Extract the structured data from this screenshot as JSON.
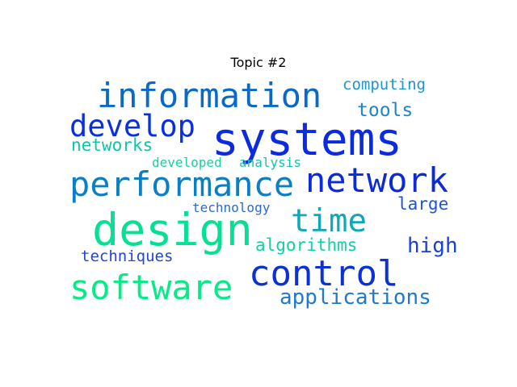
{
  "title": "Topic #2",
  "words": [
    {
      "key": "systems",
      "text": "systems",
      "color": "#0a2be0"
    },
    {
      "key": "information",
      "text": "information",
      "color": "#0a68c6"
    },
    {
      "key": "develop",
      "text": "develop",
      "color": "#0a30dc"
    },
    {
      "key": "computing",
      "text": "computing",
      "color": "#1f95cf"
    },
    {
      "key": "tools",
      "text": "tools",
      "color": "#1a86cc"
    },
    {
      "key": "networks",
      "text": "networks",
      "color": "#10c4a8"
    },
    {
      "key": "developed",
      "text": "developed",
      "color": "#12d2a2"
    },
    {
      "key": "analysis",
      "text": "analysis",
      "color": "#14c3ac"
    },
    {
      "key": "performance",
      "text": "performance",
      "color": "#0a7fc4"
    },
    {
      "key": "network",
      "text": "network",
      "color": "#0c2ad8"
    },
    {
      "key": "large",
      "text": "large",
      "color": "#1c55d6"
    },
    {
      "key": "technology",
      "text": "technology",
      "color": "#2a6ad4"
    },
    {
      "key": "time",
      "text": "time",
      "color": "#0ea8b8"
    },
    {
      "key": "design",
      "text": "design",
      "color": "#06e092"
    },
    {
      "key": "algorithms",
      "text": "algorithms",
      "color": "#13cfa4"
    },
    {
      "key": "high",
      "text": "high",
      "color": "#1a3fdc"
    },
    {
      "key": "techniques",
      "text": "techniques",
      "color": "#2546cf"
    },
    {
      "key": "control",
      "text": "control",
      "color": "#0a30d6"
    },
    {
      "key": "software",
      "text": "software",
      "color": "#06ea88"
    },
    {
      "key": "applications",
      "text": "applications",
      "color": "#1e7ad0"
    }
  ]
}
